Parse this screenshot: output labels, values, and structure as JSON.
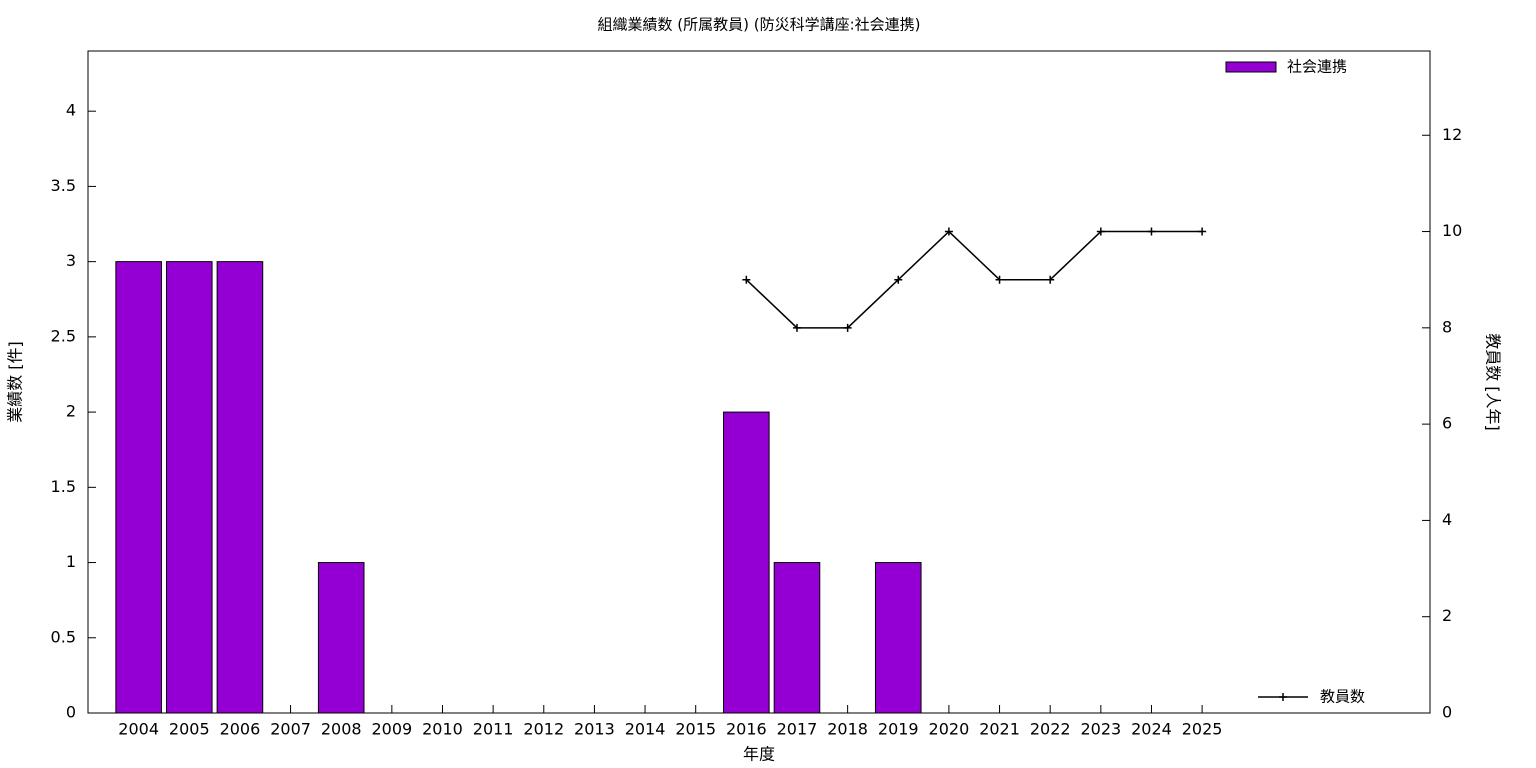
{
  "chart_data": {
    "type": "bar",
    "title": "組織業績数 (所属教員) (防災科学講座:社会連携)",
    "xlabel": "年度",
    "ylabel": "業績数 [件]",
    "y2label": "教員数 [人年]",
    "categories": [
      "2004",
      "2005",
      "2006",
      "2007",
      "2008",
      "2009",
      "2010",
      "2011",
      "2012",
      "2013",
      "2014",
      "2015",
      "2016",
      "2017",
      "2018",
      "2019",
      "2020",
      "2021",
      "2022",
      "2023",
      "2024",
      "2025"
    ],
    "series": [
      {
        "name": "社会連携",
        "type": "bar",
        "color": "#9400d3",
        "axis": "y",
        "legend": "top-right",
        "values": [
          3,
          3,
          3,
          0,
          1,
          0,
          0,
          0,
          0,
          0,
          0,
          0,
          2,
          1,
          0,
          1,
          0,
          0,
          0,
          0,
          0,
          0
        ]
      },
      {
        "name": "教員数",
        "type": "line",
        "color": "#000000",
        "axis": "y2",
        "legend": "bottom-right",
        "values": [
          null,
          null,
          null,
          null,
          null,
          null,
          null,
          null,
          null,
          null,
          null,
          null,
          9,
          8,
          8,
          9,
          10,
          9,
          9,
          10,
          10,
          10
        ]
      }
    ],
    "ylim": [
      0,
      4.4
    ],
    "yticks": [
      0,
      0.5,
      1,
      1.5,
      2,
      2.5,
      3,
      3.5,
      4
    ],
    "y2lim": [
      0,
      13.75
    ],
    "y2ticks": [
      0,
      2,
      4,
      6,
      8,
      10,
      12
    ]
  }
}
